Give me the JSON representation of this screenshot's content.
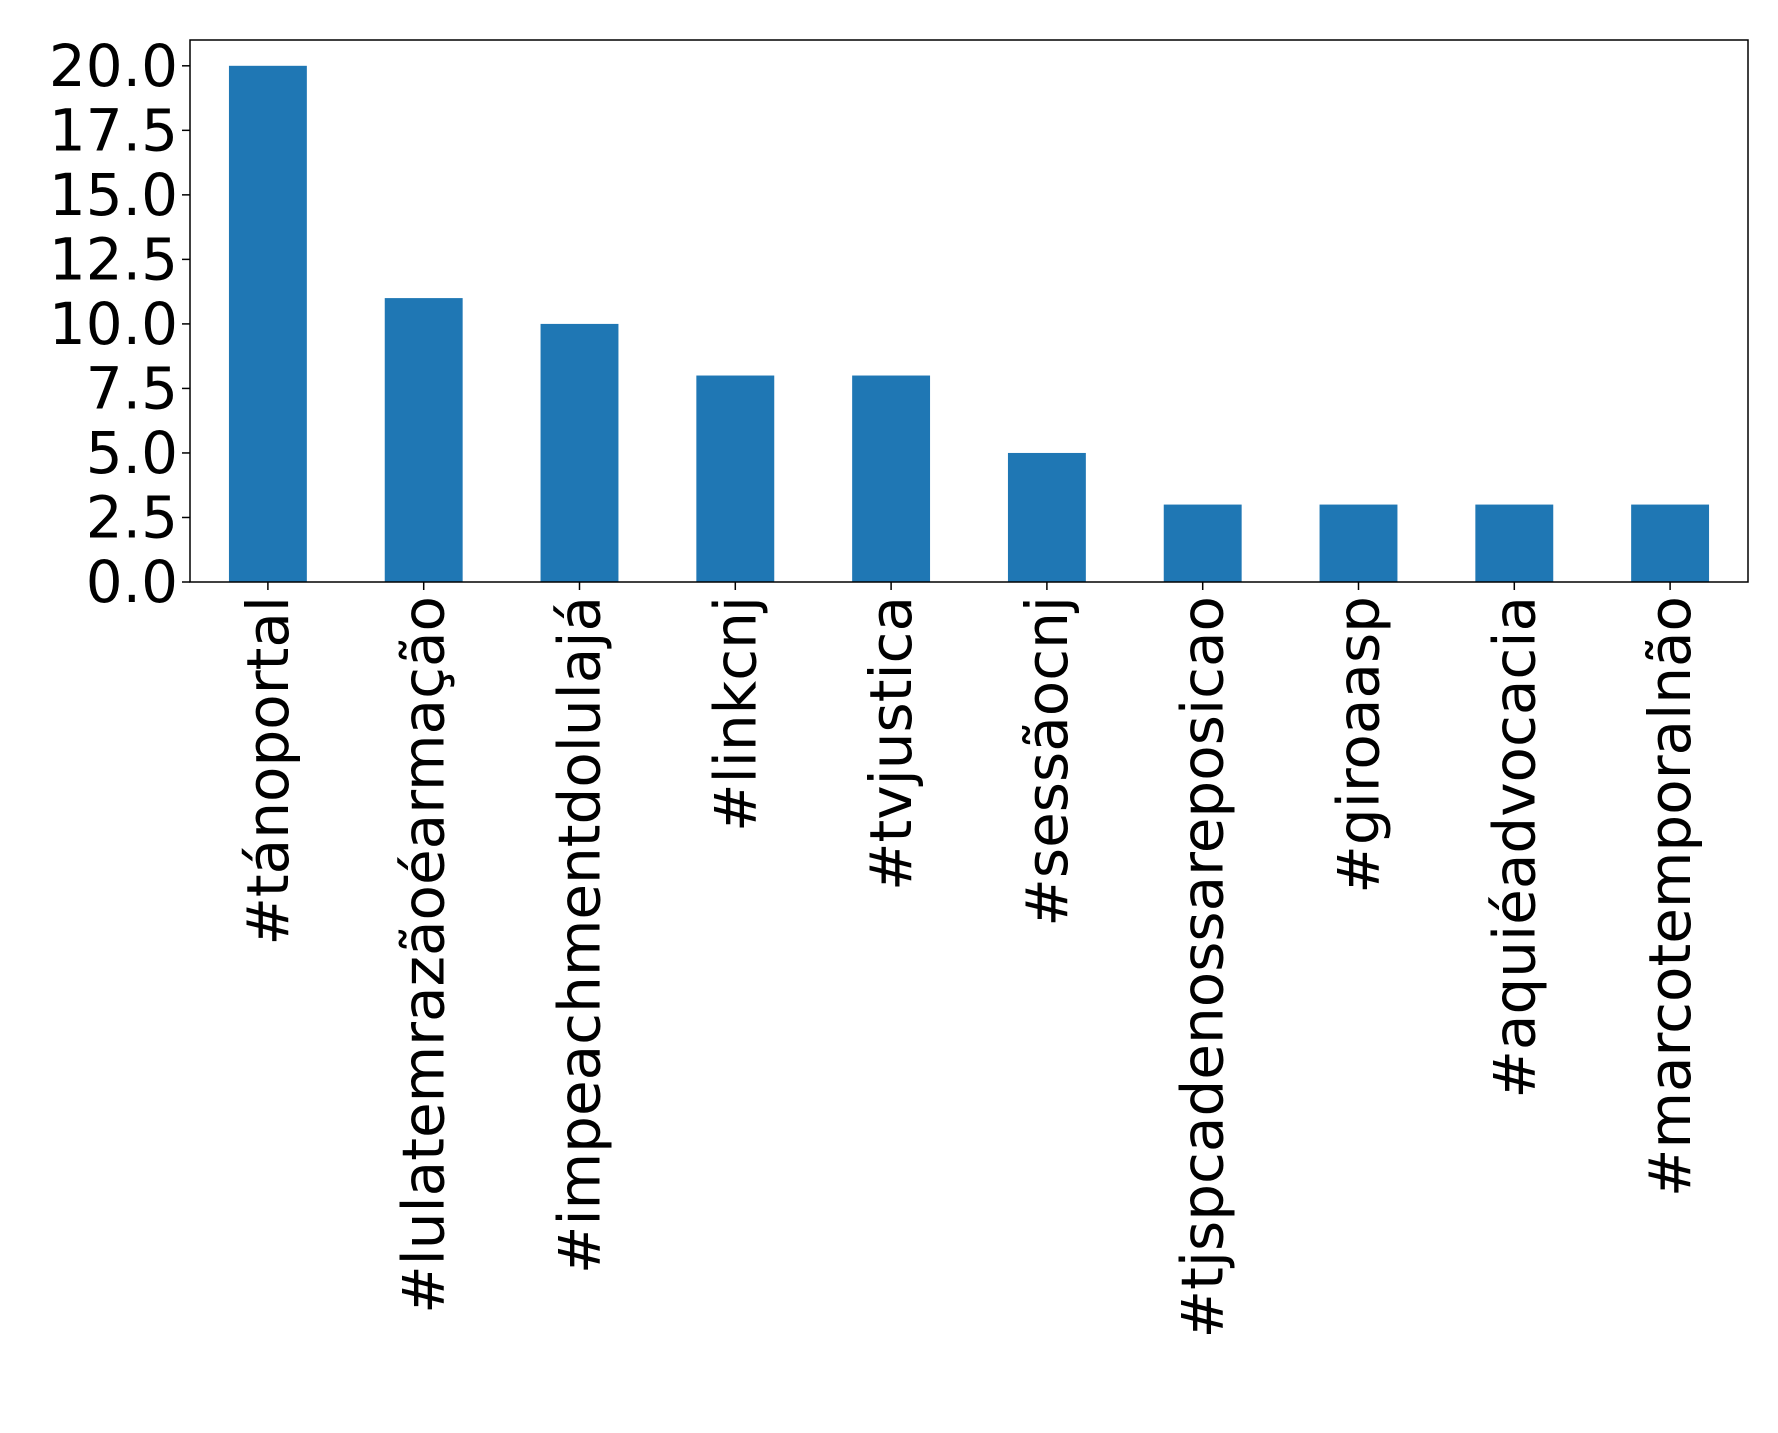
{
  "chart_data": {
    "type": "bar",
    "title": "",
    "xlabel": "",
    "ylabel": "",
    "categories": [
      "#tánoportal",
      "#lulatemrazãoéarmação",
      "#impeachmentdolulajá",
      "#linkcnj",
      "#tvjustica",
      "#sessãocnj",
      "#tjspcadenossareposicao",
      "#giroaasp",
      "#aquiéadvocacia",
      "#marcotemporalnão"
    ],
    "values": [
      20,
      11,
      10,
      8,
      8,
      5,
      3,
      3,
      3,
      3
    ],
    "ylim": [
      0,
      21
    ],
    "yticks": [
      0.0,
      2.5,
      5.0,
      7.5,
      10.0,
      12.5,
      15.0,
      17.5,
      20.0
    ],
    "ytick_labels": [
      "0.0",
      "2.5",
      "5.0",
      "7.5",
      "10.0",
      "12.5",
      "15.0",
      "17.5",
      "20.0"
    ],
    "bar_color": "#1f77b4",
    "grid": false,
    "legend": "none"
  }
}
